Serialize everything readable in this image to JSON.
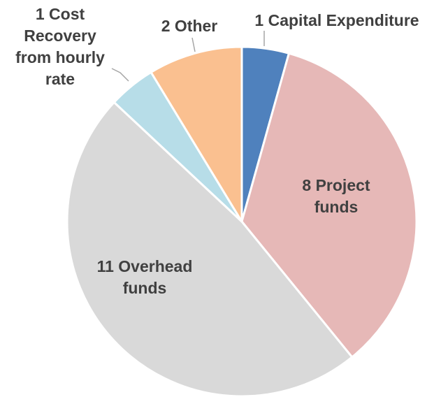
{
  "chart_data": {
    "type": "pie",
    "categories": [
      "Capital Expenditure",
      "Project funds",
      "Overhead funds",
      "Cost Recovery from hourly rate",
      "Other"
    ],
    "values": [
      1,
      8,
      11,
      1,
      2
    ],
    "colors": [
      "#4f81bd",
      "#e6b8b7",
      "#d9d9d9",
      "#b7dde8",
      "#fac090"
    ]
  }
}
